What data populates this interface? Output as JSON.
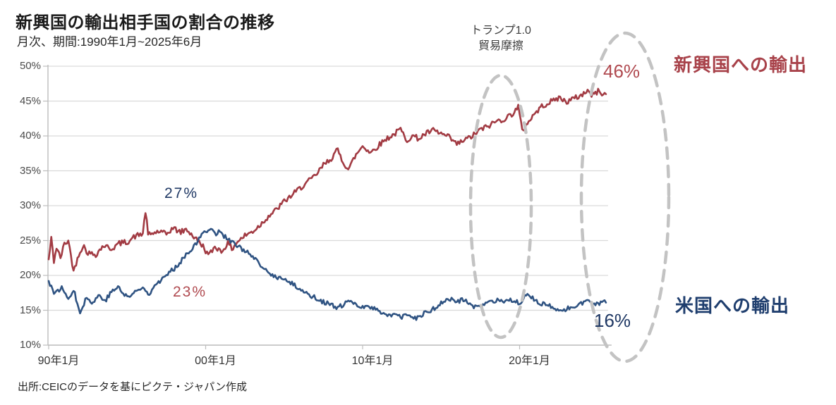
{
  "header": {
    "title": "新興国の輸出相手国の割合の推移",
    "subtitle": "月次、期間:1990年1月~2025年6月"
  },
  "footer": {
    "source": "出所:CEICのデータを基にピクテ・ジャパン作成"
  },
  "colors": {
    "red_line": "#A23B43",
    "red_text": "#B04A50",
    "navy_line": "#2F5382",
    "navy_text": "#1F3864",
    "grid": "#D9D9D9",
    "axis": "#BDBDBD",
    "ellipse": "#C3C3C3",
    "annotation_text": "#3F3F3F"
  },
  "chart_data": {
    "type": "line",
    "title": "新興国の輸出相手国の割合の推移",
    "frequency_note": "月次、期間:1990年1月~2025年6月",
    "x_range_years": [
      1990.0,
      2025.5
    ],
    "ylim": [
      10,
      50
    ],
    "y_unit": "%",
    "grid": "horizontal-only",
    "y_ticks": [
      50,
      45,
      40,
      35,
      30,
      25,
      20,
      15,
      10
    ],
    "x_ticks": [
      {
        "t": 1990.0,
        "label": "90年1月"
      },
      {
        "t": 2000.0,
        "label": "00年1月"
      },
      {
        "t": 2010.0,
        "label": "10年1月"
      },
      {
        "t": 2020.0,
        "label": "20年1月"
      }
    ],
    "series": [
      {
        "name": "新興国への輸出",
        "color_key": "red_line",
        "end_value_pct": 46,
        "anchors_t_value": [
          [
            1990.0,
            22.3
          ],
          [
            1990.17,
            25.3
          ],
          [
            1990.33,
            22.0
          ],
          [
            1990.5,
            24.0
          ],
          [
            1990.75,
            22.5
          ],
          [
            1991.0,
            24.5
          ],
          [
            1991.25,
            25.0
          ],
          [
            1991.6,
            20.5
          ],
          [
            1991.9,
            23.0
          ],
          [
            1992.2,
            24.3
          ],
          [
            1992.5,
            23.2
          ],
          [
            1993.0,
            23.0
          ],
          [
            1993.5,
            24.3
          ],
          [
            1994.0,
            23.8
          ],
          [
            1994.5,
            24.6
          ],
          [
            1995.0,
            24.8
          ],
          [
            1995.5,
            25.6
          ],
          [
            1996.0,
            26.0
          ],
          [
            1996.17,
            29.3
          ],
          [
            1996.33,
            25.8
          ],
          [
            1997.0,
            26.3
          ],
          [
            1997.5,
            25.9
          ],
          [
            1997.9,
            26.8
          ],
          [
            1998.4,
            26.2
          ],
          [
            1998.8,
            26.6
          ],
          [
            1999.3,
            25.4
          ],
          [
            1999.8,
            24.3
          ],
          [
            2000.2,
            22.8
          ],
          [
            2000.6,
            24.2
          ],
          [
            2001.0,
            23.4
          ],
          [
            2001.4,
            24.6
          ],
          [
            2001.7,
            23.8
          ],
          [
            2002.0,
            24.8
          ],
          [
            2002.5,
            25.7
          ],
          [
            2003.0,
            26.3
          ],
          [
            2003.5,
            27.3
          ],
          [
            2004.0,
            28.5
          ],
          [
            2004.5,
            29.4
          ],
          [
            2005.0,
            30.6
          ],
          [
            2005.5,
            31.5
          ],
          [
            2006.0,
            32.5
          ],
          [
            2006.5,
            33.4
          ],
          [
            2007.0,
            34.3
          ],
          [
            2007.5,
            35.8
          ],
          [
            2008.0,
            36.8
          ],
          [
            2008.4,
            38.0
          ],
          [
            2008.75,
            36.3
          ],
          [
            2009.1,
            35.2
          ],
          [
            2009.5,
            37.0
          ],
          [
            2010.0,
            38.6
          ],
          [
            2010.5,
            37.6
          ],
          [
            2011.0,
            38.6
          ],
          [
            2011.5,
            39.6
          ],
          [
            2012.0,
            40.2
          ],
          [
            2012.4,
            41.0
          ],
          [
            2012.8,
            39.4
          ],
          [
            2013.2,
            40.0
          ],
          [
            2013.6,
            39.6
          ],
          [
            2014.0,
            40.3
          ],
          [
            2014.5,
            40.8
          ],
          [
            2015.0,
            40.3
          ],
          [
            2015.5,
            39.8
          ],
          [
            2016.0,
            38.8
          ],
          [
            2016.5,
            39.4
          ],
          [
            2017.0,
            40.0
          ],
          [
            2017.5,
            40.9
          ],
          [
            2018.0,
            41.4
          ],
          [
            2018.5,
            42.1
          ],
          [
            2019.0,
            42.4
          ],
          [
            2019.5,
            43.1
          ],
          [
            2019.92,
            44.2
          ],
          [
            2020.17,
            40.6
          ],
          [
            2020.5,
            41.9
          ],
          [
            2021.0,
            43.3
          ],
          [
            2021.5,
            44.4
          ],
          [
            2022.0,
            44.9
          ],
          [
            2022.5,
            45.5
          ],
          [
            2023.0,
            44.9
          ],
          [
            2023.5,
            45.4
          ],
          [
            2024.0,
            45.9
          ],
          [
            2024.3,
            46.6
          ],
          [
            2024.6,
            45.8
          ],
          [
            2025.0,
            46.4
          ],
          [
            2025.42,
            46.0
          ]
        ]
      },
      {
        "name": "米国への輸出",
        "color_key": "navy_line",
        "end_value_pct": 16,
        "anchors_t_value": [
          [
            1990.0,
            19.2
          ],
          [
            1990.4,
            17.3
          ],
          [
            1990.8,
            18.3
          ],
          [
            1991.2,
            16.8
          ],
          [
            1991.6,
            17.8
          ],
          [
            1992.0,
            14.8
          ],
          [
            1992.4,
            16.8
          ],
          [
            1992.8,
            16.0
          ],
          [
            1993.2,
            17.2
          ],
          [
            1993.6,
            16.4
          ],
          [
            1994.0,
            17.6
          ],
          [
            1994.4,
            18.4
          ],
          [
            1994.8,
            17.2
          ],
          [
            1995.2,
            17.0
          ],
          [
            1995.6,
            17.8
          ],
          [
            1996.0,
            18.2
          ],
          [
            1996.4,
            17.4
          ],
          [
            1996.8,
            18.8
          ],
          [
            1997.2,
            19.4
          ],
          [
            1997.6,
            20.2
          ],
          [
            1998.0,
            21.0
          ],
          [
            1998.4,
            22.0
          ],
          [
            1998.8,
            23.2
          ],
          [
            1999.2,
            24.0
          ],
          [
            1999.6,
            25.2
          ],
          [
            1999.9,
            26.3
          ],
          [
            2000.3,
            26.8
          ],
          [
            2000.6,
            25.9
          ],
          [
            2000.9,
            26.4
          ],
          [
            2001.2,
            25.6
          ],
          [
            2001.6,
            24.9
          ],
          [
            2002.0,
            24.2
          ],
          [
            2002.5,
            23.6
          ],
          [
            2003.0,
            22.6
          ],
          [
            2003.5,
            21.4
          ],
          [
            2004.0,
            20.3
          ],
          [
            2004.5,
            19.8
          ],
          [
            2005.0,
            19.4
          ],
          [
            2005.5,
            18.8
          ],
          [
            2006.0,
            18.1
          ],
          [
            2006.5,
            17.3
          ],
          [
            2007.0,
            16.8
          ],
          [
            2007.5,
            16.2
          ],
          [
            2008.0,
            15.8
          ],
          [
            2008.3,
            15.2
          ],
          [
            2008.8,
            15.8
          ],
          [
            2009.1,
            16.3
          ],
          [
            2009.5,
            15.8
          ],
          [
            2010.0,
            15.6
          ],
          [
            2010.5,
            15.4
          ],
          [
            2011.0,
            15.0
          ],
          [
            2011.5,
            14.4
          ],
          [
            2012.0,
            14.3
          ],
          [
            2012.5,
            14.0
          ],
          [
            2013.0,
            14.3
          ],
          [
            2013.4,
            13.8
          ],
          [
            2013.8,
            14.4
          ],
          [
            2014.2,
            14.8
          ],
          [
            2014.6,
            15.3
          ],
          [
            2015.0,
            16.0
          ],
          [
            2015.5,
            16.6
          ],
          [
            2016.0,
            16.3
          ],
          [
            2016.5,
            16.5
          ],
          [
            2017.0,
            15.6
          ],
          [
            2017.5,
            15.4
          ],
          [
            2018.0,
            16.0
          ],
          [
            2018.5,
            16.4
          ],
          [
            2019.0,
            16.1
          ],
          [
            2019.5,
            16.4
          ],
          [
            2020.0,
            16.0
          ],
          [
            2020.5,
            17.6
          ],
          [
            2020.9,
            16.6
          ],
          [
            2021.3,
            16.0
          ],
          [
            2021.7,
            15.7
          ],
          [
            2022.0,
            15.5
          ],
          [
            2022.5,
            14.9
          ],
          [
            2022.9,
            15.1
          ],
          [
            2023.3,
            15.4
          ],
          [
            2023.7,
            15.9
          ],
          [
            2024.0,
            16.1
          ],
          [
            2024.4,
            16.4
          ],
          [
            2024.8,
            15.7
          ],
          [
            2025.1,
            16.0
          ],
          [
            2025.42,
            16.1
          ]
        ]
      }
    ],
    "annotations": {
      "trump_event": {
        "line1": "トランプ1.0",
        "line2": "貿易摩擦"
      },
      "red_end": {
        "text": "46%",
        "value": 46
      },
      "blue_end": {
        "text": "16%",
        "value": 16
      },
      "blue_peak_2000": {
        "text": "27%",
        "value": 27
      },
      "red_dip_2000": {
        "text": "23%",
        "value": 23
      },
      "series_label_red": "新興国への輸出",
      "series_label_blue": "米国への輸出",
      "highlight_ellipses": [
        "trump-era",
        "latest-values"
      ]
    }
  }
}
